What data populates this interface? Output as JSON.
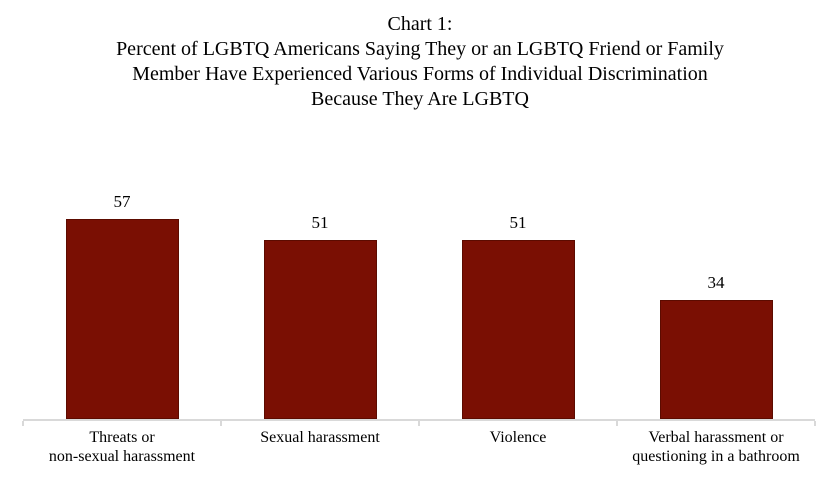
{
  "title": {
    "lines": [
      "Chart 1:",
      "Percent of LGBTQ Americans Saying They or an LGBTQ Friend or Family",
      "Member Have Experienced Various Forms of Individual Discrimination",
      "Because They Are LGBTQ"
    ]
  },
  "chart_data": {
    "type": "bar",
    "title": "Chart 1: Percent of LGBTQ Americans Saying They or an LGBTQ Friend or Family Member Have Experienced Various Forms of Individual Discrimination Because They Are LGBTQ",
    "categories": [
      "Threats or\nnon-sexual harassment",
      "Sexual harassment",
      "Violence",
      "Verbal harassment or\nquestioning in a bathroom"
    ],
    "values": [
      57,
      51,
      51,
      34
    ],
    "data_labels": [
      "57",
      "51",
      "51",
      "34"
    ],
    "xlabel": "",
    "ylabel": "",
    "ylim": [
      0,
      60
    ],
    "grid": false,
    "legend": false,
    "colors": {
      "bar_fill": "#7A0F03",
      "bar_border": "#5C0B00",
      "axis_line": "#D9D9D9",
      "text": "#000000"
    }
  }
}
